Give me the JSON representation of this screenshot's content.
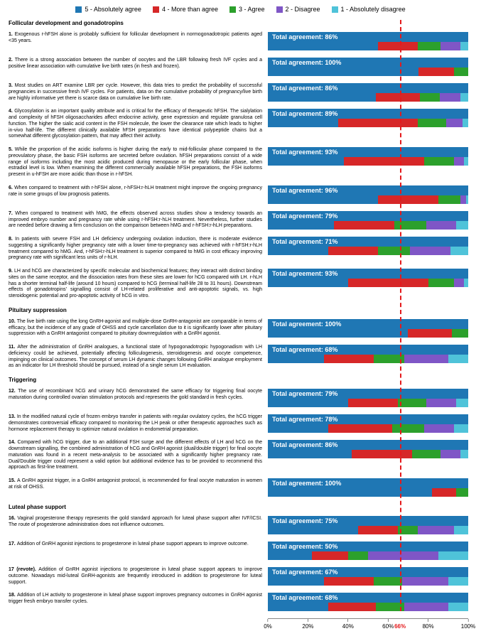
{
  "legend": [
    {
      "label": "5 - Absolutely agree",
      "color": "#1f77b4"
    },
    {
      "label": "4 - More than agree",
      "color": "#d62728"
    },
    {
      "label": "3 - Agree",
      "color": "#2ca02c"
    },
    {
      "label": "2 - Disagree",
      "color": "#7f56c6"
    },
    {
      "label": "1 - Absolutely disagree",
      "color": "#4fc3d9"
    }
  ],
  "label_bg": "#1f77b4",
  "threshold": {
    "value": 66,
    "label": "66%",
    "color": "#e41a1c"
  },
  "axis": {
    "ticks": [
      0,
      20,
      40,
      60,
      80,
      100
    ],
    "suffix": "%"
  },
  "sections": [
    {
      "title": "Follicular development and gonadotropins",
      "items": [
        {
          "n": "1.",
          "text": "Exogenous r-hFSH alone is probably sufficient for follicular development in normogonadotropic patients aged <35 years.",
          "agree": 86,
          "segs": [
            55,
            20,
            11,
            10,
            4
          ]
        },
        {
          "n": "2.",
          "text": "There is a strong association between the number of oocytes and the LBR following fresh IVF cycles and a positive linear association with cumulative live birth rates (in fresh and frozen).",
          "agree": 100,
          "segs": [
            75,
            18,
            7,
            0,
            0
          ]
        },
        {
          "n": "3.",
          "text": "Most studies on ART examine LBR per cycle. However, this data tries to predict the probability of successful pregnancies in successive fresh IVF cycles. For patients, data on the cumulative probability of pregnancy/live birth are highly informative yet there is scarce data on cumulative live birth rate.",
          "agree": 86,
          "segs": [
            54,
            22,
            10,
            10,
            4
          ]
        },
        {
          "n": "4.",
          "text": "Glycosylation is an important quality attribute and is critical for the efficacy of therapeutic hFSH. The sialylation and complexity of hFSH oligosaccharides affect endocrine activity, gene expression and regulate granulosa cell function. The higher the sialic acid content in the FSH molecule, the lower the clearance rate which leads to higher in-vivo half-life. The different clinically available hFSH preparations have identical polypeptide chains but a somewhat different glycosylation pattern, that may affect their activity.",
          "agree": 89,
          "segs": [
            35,
            40,
            14,
            8,
            3
          ]
        },
        {
          "n": "5.",
          "text": "While the proportion of the acidic isoforms is higher during the early to mid-follicular phase compared to the preovulatory phase, the basic FSH isoforms are secreted before ovulation. hFSH preparations consist of a wide range of isoforms including the most acidic produced during menopause or the early follicular phase, when estradiol level is low. When examining the different commercially available hFSH preparations, the FSH isoforms present in u-hFSH are more acidic than those in r-hFSH.",
          "agree": 93,
          "segs": [
            38,
            40,
            15,
            5,
            2
          ]
        },
        {
          "n": "6.",
          "text": "When compared to treatment with r-hFSH alone, r-hFSH:r-hLH treatment might improve the ongoing pregnancy rate in some groups of low prognosis patients.",
          "agree": 96,
          "segs": [
            55,
            30,
            11,
            3,
            1
          ]
        },
        {
          "n": "7.",
          "text": "When compared to treatment with hMG, the effects observed across studies show a tendency towards an improved embryo number and pregnancy rate while using r-hFSH:r-hLH treatment. Nevertheless, further studies are needed before drawing a firm conclusion on the comparison between hMG and r-hFSH:r-hLH preparations.",
          "agree": 79,
          "segs": [
            33,
            30,
            16,
            15,
            6
          ]
        },
        {
          "n": "8.",
          "text": "In patients with severe FSH and LH deficiency undergoing ovulation induction, there is moderate evidence suggesting a significantly higher pregnancy rate with a lower time-to-pregnancy was achieved with r-hFSH:r-hLH treatment compared to hMG. And, r-hFSH:r-hLH treatment is superior compared to hMG in cost efficacy improving pregnancy rate with significant less units of r-hLH.",
          "agree": 71,
          "segs": [
            30,
            25,
            16,
            20,
            9
          ]
        },
        {
          "n": "9.",
          "text": "LH and hCG are characterized by specific molecular and biochemical features; they interact with distinct binding sites on the same receptor, and the dissociation rates from these sites are lower for hCG compared with LH. r-hLH has a shorter terminal half-life (around 10 hours) compared to hCG (terminal half-life 28 to 31 hours). Downstream effects of gonadotropins' signalling consist of LH-related proliferative and anti-apoptotic signals, vs. high steroidogenic potential and pro-apoptotic activity of hCG in vitro.",
          "agree": 93,
          "segs": [
            40,
            40,
            13,
            5,
            2
          ]
        }
      ]
    },
    {
      "title": "Pituitary suppression",
      "items": [
        {
          "n": "10.",
          "text": "The live birth rate using the long GnRH-agonist and multiple-dose GnRH-antagonist are comparable in terms of efficacy, but the incidence of any grade of OHSS and cycle cancellation due to it is significantly lower after pituitary suppression with a GnRH antagonist compared to pituitary downregulation with a GnRH agonist.",
          "agree": 100,
          "segs": [
            70,
            22,
            8,
            0,
            0
          ]
        },
        {
          "n": "11.",
          "text": "After the administration of GnRH analogues, a functional state of hypogonadotropic hypogonadism with LH deficiency could be achieved, potentially affecting folliculogenesis, steroidogenesis and oocyte competence, impinging on clinical outcomes. The concept of serum LH dynamic changes following GnRH analogue employment as an indicator for LH threshold should be pursued, instead of a single serum LH evaluation.",
          "agree": 68,
          "segs": [
            28,
            25,
            15,
            22,
            10
          ]
        }
      ]
    },
    {
      "title": "Triggering",
      "items": [
        {
          "n": "12.",
          "text": "The use of recombinant hCG and urinary hCG demonstrated the same efficacy for triggering final oocyte maturation during controlled ovarian stimulation protocols and represents the gold standard in fresh cycles.",
          "agree": 79,
          "segs": [
            40,
            25,
            14,
            15,
            6
          ]
        },
        {
          "n": "13.",
          "text": "In the modified natural cycle of frozen embryo transfer in patients with regular ovulatory cycles, the hCG trigger demonstrates controversial efficacy compared to monitoring the LH peak or other therapeutic approaches such as hormone replacement therapy to optimize natural ovulation in endometrial preparation.",
          "agree": 78,
          "segs": [
            30,
            32,
            16,
            15,
            7
          ]
        },
        {
          "n": "14.",
          "text": "Compared with hCG trigger, due to an additional FSH surge and the different effects of LH and hCG on the downstream signalling, the combined administration of hCG and GnRH agonist (dual/double trigger) for final oocyte maturation was found in a recent meta-analysis to be associated with a significantly higher pregnancy rate. Dual/Double trigger could represent a valid option but additional evidence has to be provided to recommend this approach as first-line treatment.",
          "agree": 86,
          "segs": [
            42,
            30,
            14,
            10,
            4
          ]
        },
        {
          "n": "15.",
          "text": "A GnRH agonist trigger, in a GnRH antagonist protocol, is recommended for final oocyte maturation in women at risk of OHSS.",
          "agree": 100,
          "segs": [
            82,
            12,
            6,
            0,
            0
          ]
        }
      ]
    },
    {
      "title": "Luteal phase support",
      "items": [
        {
          "n": "16.",
          "text": "Vaginal progesterone therapy represents the gold standard approach for luteal phase support after IVF/ICSI. The route of progesterone administration does not influence outcomes.",
          "agree": 75,
          "segs": [
            45,
            20,
            10,
            18,
            7
          ]
        },
        {
          "n": "17.",
          "text": "Addition of GnRH agonist injections to progesterone in luteal phase support appears to improve outcome.",
          "agree": 50,
          "segs": [
            22,
            18,
            10,
            35,
            15
          ]
        },
        {
          "n": "17 (revote).",
          "text": "Addition of GnRH agonist injections to progesterone in luteal phase support appears to improve outcome. Nowadays mid-luteal GnRH-agonists are frequently introduced in addition to progesterone for luteal support.",
          "agree": 67,
          "segs": [
            28,
            25,
            14,
            23,
            10
          ]
        },
        {
          "n": "18.",
          "text": "Addition of LH activity to progesterone in luteal phase support improves pregnancy outcomes in GnRH agonist trigger fresh embryo transfer cycles.",
          "agree": 68,
          "segs": [
            30,
            24,
            14,
            22,
            10
          ]
        }
      ]
    }
  ]
}
